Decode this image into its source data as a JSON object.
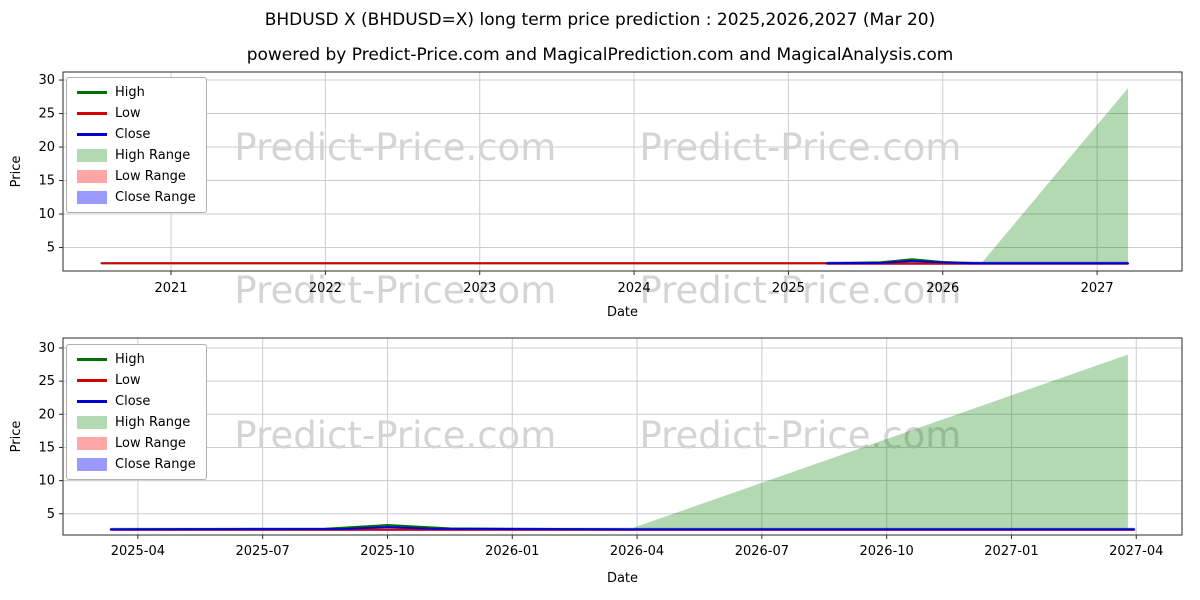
{
  "page": {
    "title": "BHDUSD X (BHDUSD=X) long term price prediction : 2025,2026,2027 (Mar 20)",
    "subtitle": "powered by Predict-Price.com and MagicalPrediction.com and MagicalAnalysis.com",
    "watermark": "Predict-Price.com"
  },
  "colors": {
    "high_line": "#007000",
    "low_line": "#d40000",
    "close_line": "#0000d4",
    "high_range_fill": "rgba(0,128,0,0.30)",
    "low_range_fill": "rgba(255,60,60,0.45)",
    "close_range_fill": "rgba(70,70,255,0.55)",
    "grid": "#cccccc",
    "spine": "#2a2a2a",
    "watermark": "#d4d4d4"
  },
  "legend_items": [
    {
      "label": "High",
      "type": "line",
      "color_key": "high_line"
    },
    {
      "label": "Low",
      "type": "line",
      "color_key": "low_line"
    },
    {
      "label": "Close",
      "type": "line",
      "color_key": "close_line"
    },
    {
      "label": "High Range",
      "type": "patch",
      "color_key": "high_range_fill"
    },
    {
      "label": "Low Range",
      "type": "patch",
      "color_key": "low_range_fill"
    },
    {
      "label": "Close Range",
      "type": "patch",
      "color_key": "close_range_fill"
    }
  ],
  "chart_data": [
    {
      "type": "line",
      "title": "",
      "xlabel": "Date",
      "ylabel": "Price",
      "xlim": [
        2020.3,
        2027.55
      ],
      "ylim": [
        1.5,
        31.2
      ],
      "yticks": [
        5,
        10,
        15,
        20,
        25,
        30
      ],
      "xticks": [
        {
          "v": 2021,
          "label": "2021"
        },
        {
          "v": 2022,
          "label": "2022"
        },
        {
          "v": 2023,
          "label": "2023"
        },
        {
          "v": 2024,
          "label": "2024"
        },
        {
          "v": 2025,
          "label": "2025"
        },
        {
          "v": 2026,
          "label": "2026"
        },
        {
          "v": 2027,
          "label": "2027"
        }
      ],
      "bands": [
        {
          "name": "low-range-band",
          "color_key": "low_range_fill",
          "x": [
            2025.25,
            2027.2
          ],
          "y_low": 2.5,
          "y_high": 2.78
        },
        {
          "name": "close-range-band",
          "color_key": "close_range_fill",
          "x": [
            2025.25,
            2027.2
          ],
          "y_low": 2.42,
          "y_high": 2.9
        }
      ],
      "high_range": {
        "name": "high-range-fill",
        "color_key": "high_range_fill",
        "points": [
          [
            2026.25,
            2.65
          ],
          [
            2027.2,
            28.8
          ],
          [
            2027.2,
            2.65
          ]
        ]
      },
      "series": [
        {
          "name": "high-history",
          "color_key": "high_line",
          "x": [
            2020.55,
            2025.25
          ],
          "y": [
            2.65,
            2.65
          ]
        },
        {
          "name": "low-history",
          "color_key": "low_line",
          "x": [
            2020.55,
            2025.25
          ],
          "y": [
            2.65,
            2.65
          ]
        },
        {
          "name": "high-forecast",
          "color_key": "high_line",
          "x": [
            2025.25,
            2025.6,
            2025.8,
            2026.0,
            2026.25
          ],
          "y": [
            2.65,
            2.8,
            3.25,
            2.85,
            2.65
          ]
        },
        {
          "name": "low-forecast",
          "color_key": "low_line",
          "x": [
            2025.25,
            2027.2
          ],
          "y": [
            2.6,
            2.6
          ]
        },
        {
          "name": "close-forecast",
          "color_key": "close_line",
          "x": [
            2025.25,
            2025.6,
            2025.8,
            2026.0,
            2026.2,
            2027.2
          ],
          "y": [
            2.65,
            2.72,
            3.0,
            2.78,
            2.65,
            2.65
          ]
        }
      ]
    },
    {
      "type": "line",
      "title": "",
      "xlabel": "Date",
      "ylabel": "Price",
      "xlim": [
        -0.8,
        26.1
      ],
      "ylim": [
        1.8,
        31.5
      ],
      "yticks": [
        5,
        10,
        15,
        20,
        25,
        30
      ],
      "xticks": [
        {
          "v": 1,
          "label": "2025-04"
        },
        {
          "v": 4,
          "label": "2025-07"
        },
        {
          "v": 7,
          "label": "2025-10"
        },
        {
          "v": 10,
          "label": "2026-01"
        },
        {
          "v": 13,
          "label": "2026-04"
        },
        {
          "v": 16,
          "label": "2026-07"
        },
        {
          "v": 19,
          "label": "2026-10"
        },
        {
          "v": 22,
          "label": "2027-01"
        },
        {
          "v": 25,
          "label": "2027-04"
        }
      ],
      "bands": [
        {
          "name": "low-range-band",
          "color_key": "low_range_fill",
          "x": [
            0.35,
            24.95
          ],
          "y_low": 2.5,
          "y_high": 2.78
        },
        {
          "name": "close-range-band",
          "color_key": "close_range_fill",
          "x": [
            0.35,
            24.95
          ],
          "y_low": 2.42,
          "y_high": 2.9
        }
      ],
      "high_range": {
        "name": "high-range-fill",
        "color_key": "high_range_fill",
        "points": [
          [
            12.8,
            2.65
          ],
          [
            24.8,
            29.0
          ],
          [
            24.8,
            2.65
          ]
        ]
      },
      "series": [
        {
          "name": "high",
          "color_key": "high_line",
          "x": [
            0.35,
            5.5,
            7,
            8.5,
            12.8,
            24.95
          ],
          "y": [
            2.65,
            2.75,
            3.3,
            2.8,
            2.65,
            2.65
          ]
        },
        {
          "name": "low",
          "color_key": "low_line",
          "x": [
            0.35,
            24.95
          ],
          "y": [
            2.6,
            2.6
          ]
        },
        {
          "name": "close",
          "color_key": "close_line",
          "x": [
            0.35,
            6,
            7,
            8,
            12.8,
            24.95
          ],
          "y": [
            2.65,
            2.7,
            3.0,
            2.75,
            2.65,
            2.65
          ]
        }
      ]
    }
  ]
}
